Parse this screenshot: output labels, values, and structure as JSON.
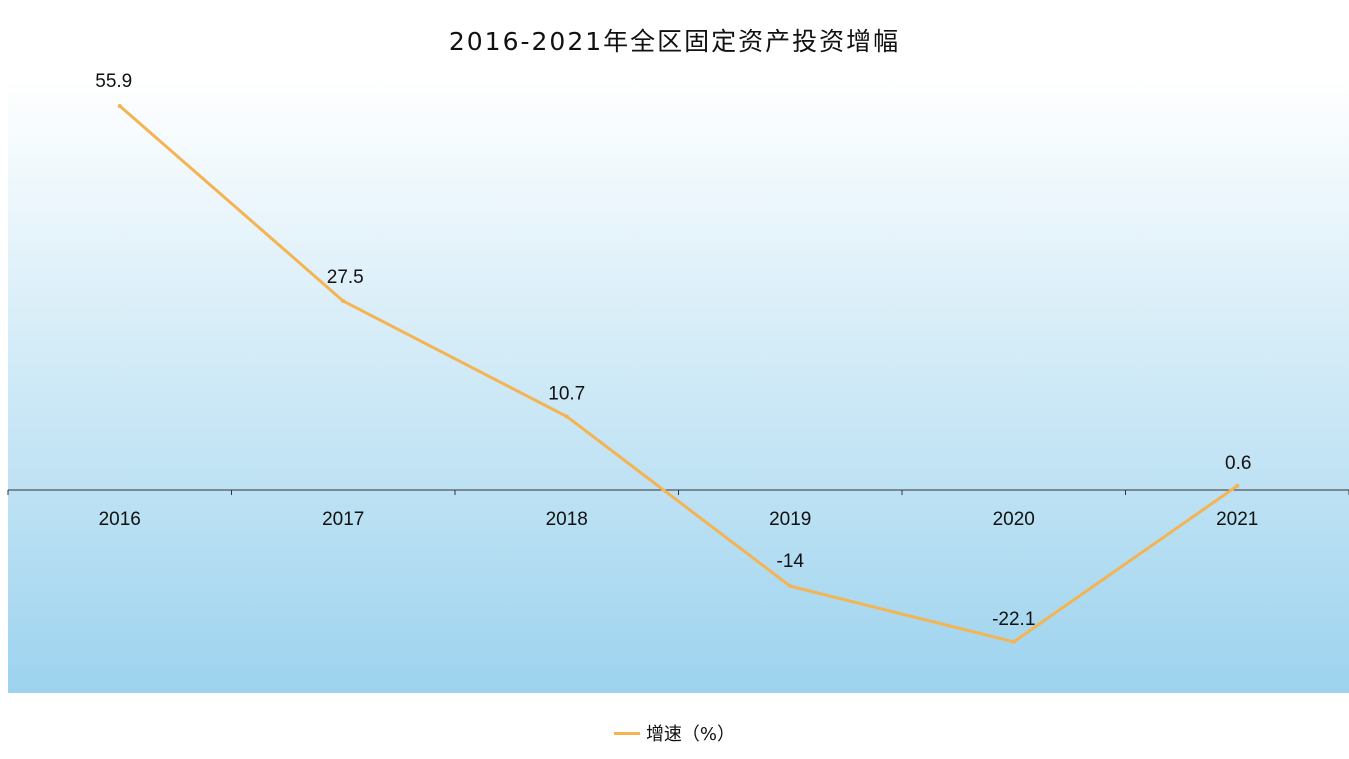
{
  "chart_data": {
    "type": "line",
    "title": "2016-2021年全区固定资产投资增幅",
    "xlabel": "",
    "ylabel": "",
    "categories": [
      "2016",
      "2017",
      "2018",
      "2019",
      "2020",
      "2021"
    ],
    "series": [
      {
        "name": "增速（%）",
        "values": [
          55.9,
          27.5,
          10.7,
          -14,
          -22.1,
          0.6
        ],
        "labels": [
          "55.9",
          "27.5",
          "10.7",
          "-14",
          "-22.1",
          "0.6"
        ]
      }
    ],
    "ylim": [
      -30,
      60
    ],
    "grid": false,
    "legend": "bottom-center",
    "colors": {
      "line": "#f5b453",
      "plot_top": "#ffffff",
      "plot_bottom": "#9dd3ee",
      "axis": "#333333"
    }
  }
}
